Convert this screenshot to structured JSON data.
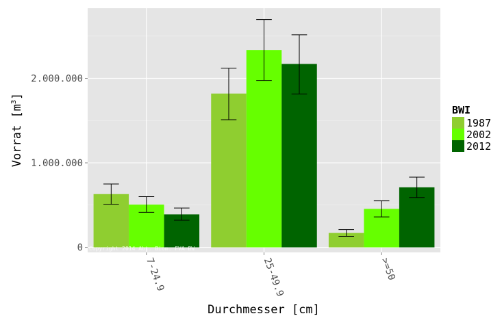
{
  "chart_data": {
    "type": "bar",
    "categories": [
      "7-24.9",
      "25-49.9",
      ">=50"
    ],
    "series": [
      {
        "name": "1987",
        "color": "#8fce30",
        "values": [
          630000,
          1820000,
          170000
        ],
        "error_low": [
          510000,
          1510000,
          130000
        ],
        "error_high": [
          750000,
          2120000,
          210000
        ]
      },
      {
        "name": "2002",
        "color": "#66ff00",
        "values": [
          505000,
          2335000,
          455000
        ],
        "error_low": [
          415000,
          1975000,
          360000
        ],
        "error_high": [
          600000,
          2695000,
          550000
        ]
      },
      {
        "name": "2012",
        "color": "#006400",
        "values": [
          390000,
          2170000,
          710000
        ],
        "error_low": [
          320000,
          1815000,
          590000
        ],
        "error_high": [
          465000,
          2515000,
          830000
        ]
      }
    ],
    "xlabel": "Durchmesser [cm]",
    "ylabel_main": "Vorrat [m",
    "ylabel_sup": "3",
    "ylabel_end": "]",
    "yticks": [
      0,
      1000000,
      2000000
    ],
    "ytick_labels": [
      "0",
      "1.000.000",
      "2.000.000"
    ],
    "ylim": [
      -60000,
      2830000
    ],
    "legend_title": "BWI",
    "legend_position": "right",
    "watermark": "Copyright 2014 Abt. Biom. FVA BW",
    "grid": true,
    "panel_background": "#e5e5e5"
  }
}
